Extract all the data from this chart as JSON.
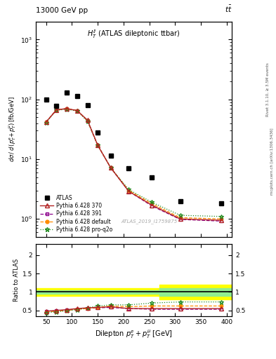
{
  "title_top": "13000 GeV pp",
  "title_top_right": "tt",
  "plot_label": "H_T^{ll} (ATLAS dileptonic ttbar)",
  "watermark": "ATLAS_2019_I1759875",
  "atlas_x": [
    50,
    70,
    90,
    110,
    130,
    150,
    175,
    210,
    255,
    310,
    390
  ],
  "atlas_y": [
    100,
    77,
    130,
    115,
    80,
    28,
    11.5,
    7.0,
    5.0,
    2.0,
    1.8
  ],
  "x_centers": [
    50,
    70,
    90,
    110,
    130,
    150,
    175,
    210,
    255,
    310,
    390
  ],
  "py370_y": [
    42,
    67,
    70,
    65,
    45,
    17,
    7.2,
    2.9,
    1.7,
    1.0,
    0.95
  ],
  "py391_y": [
    42,
    67,
    70,
    65,
    44,
    17,
    7.2,
    2.9,
    1.65,
    0.98,
    0.92
  ],
  "pydef_y": [
    42,
    67,
    70,
    65,
    44,
    17,
    7.2,
    3.0,
    1.8,
    1.05,
    1.0
  ],
  "pyproq2o_y": [
    41,
    66,
    68,
    64,
    43,
    17,
    7.2,
    3.1,
    1.9,
    1.15,
    1.1
  ],
  "ratio_x": [
    50,
    70,
    90,
    110,
    130,
    150,
    175,
    210,
    255,
    310,
    390
  ],
  "ratio_py370": [
    0.48,
    0.5,
    0.52,
    0.55,
    0.57,
    0.58,
    0.6,
    0.55,
    0.55,
    0.55,
    0.55
  ],
  "ratio_py391": [
    0.47,
    0.49,
    0.51,
    0.54,
    0.56,
    0.57,
    0.58,
    0.55,
    0.53,
    0.53,
    0.53
  ],
  "ratio_pydef": [
    0.46,
    0.48,
    0.5,
    0.53,
    0.55,
    0.58,
    0.62,
    0.6,
    0.62,
    0.62,
    0.62
  ],
  "ratio_pyproq2o": [
    0.44,
    0.46,
    0.49,
    0.52,
    0.57,
    0.62,
    0.65,
    0.65,
    0.7,
    0.73,
    0.73
  ],
  "color_py370": "#b22222",
  "color_py391": "#8b008b",
  "color_pydef": "#ff8c00",
  "color_pyproq2o": "#228b22",
  "xlim": [
    30,
    410
  ],
  "ylim_main": [
    0.5,
    2000
  ],
  "ylim_ratio": [
    0.35,
    2.3
  ]
}
